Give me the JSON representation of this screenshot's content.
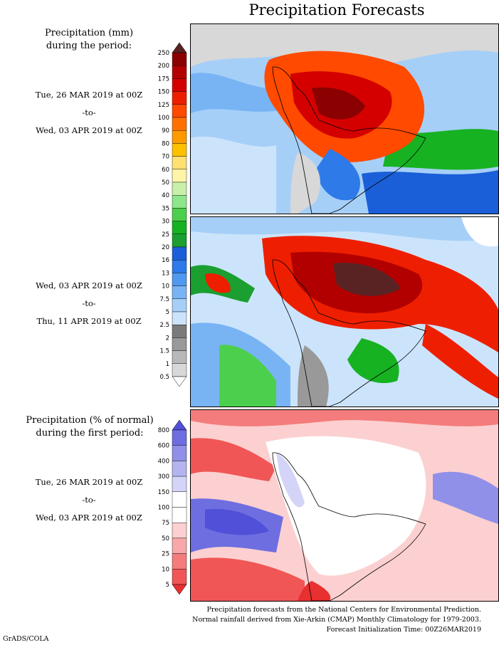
{
  "title": "Precipitation Forecasts",
  "section1": {
    "heading_line1": "Precipitation (mm)",
    "heading_line2": "during the period:",
    "period1": {
      "from": "Tue, 26 MAR 2019 at 00Z",
      "sep": "-to-",
      "to": "Wed, 03 APR 2019 at 00Z"
    },
    "period2": {
      "from": "Wed, 03 APR 2019 at 00Z",
      "sep": "-to-",
      "to": "Thu, 11 APR 2019 at 00Z"
    }
  },
  "section2": {
    "heading_line1": "Precipitation (% of normal)",
    "heading_line2": "during the first period:",
    "period": {
      "from": "Tue, 26 MAR 2019 at 00Z",
      "sep": "-to-",
      "to": "Wed, 03 APR 2019 at 00Z"
    }
  },
  "mm_scale": {
    "labels": [
      "250",
      "200",
      "175",
      "150",
      "125",
      "100",
      "90",
      "80",
      "70",
      "60",
      "50",
      "40",
      "35",
      "30",
      "25",
      "20",
      "16",
      "13",
      "10",
      "7.5",
      "5",
      "2.5",
      "2",
      "1.5",
      "1",
      "0.5"
    ],
    "colors": [
      "#5a2323",
      "#8b0000",
      "#b20000",
      "#d40000",
      "#ee1f00",
      "#ff4a00",
      "#ff7000",
      "#ff9a00",
      "#ffc000",
      "#ffe070",
      "#fff4a8",
      "#c8f0a8",
      "#8ee68a",
      "#4ccf4c",
      "#16b222",
      "#1a9f30",
      "#1a5fd8",
      "#2d7ae8",
      "#4f99f0",
      "#78b4f4",
      "#a6cff8",
      "#cce4fb",
      "#7a7a7a",
      "#999999",
      "#b8b8b8",
      "#d8d8d8",
      "#ffffff"
    ]
  },
  "pct_scale": {
    "labels": [
      "800",
      "600",
      "400",
      "300",
      "150",
      "100",
      "75",
      "50",
      "25",
      "10",
      "5"
    ],
    "colors": [
      "#5050d8",
      "#6e6ee0",
      "#9090e8",
      "#b4b4f0",
      "#d4d4f8",
      "#ffffff",
      "#ffffff",
      "#fcd0d0",
      "#f8a8a8",
      "#f47c7c",
      "#f05656",
      "#e83030"
    ]
  },
  "footer": {
    "line1": "Precipitation forecasts from the National Centers for Environmental Prediction.",
    "line2": "Normal rainfall derived from Xie-Arkin (CMAP) Monthly Climatology for 1979-2003.",
    "line3": "Forecast Initialization Time: 00Z26MAR2019"
  },
  "credit": "GrADS/COLA"
}
